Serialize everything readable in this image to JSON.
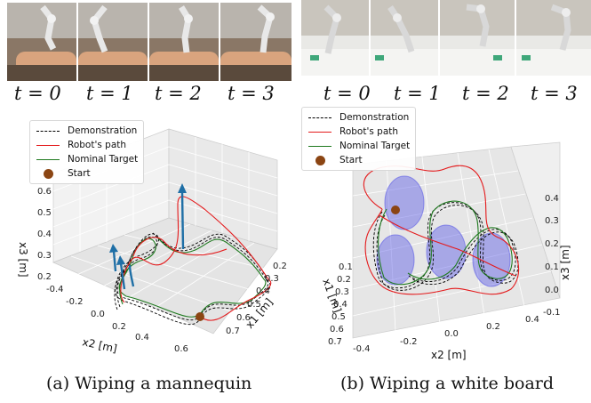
{
  "panel_a": {
    "time_labels": [
      "t = 0",
      "t = 1",
      "t = 2",
      "t = 3"
    ],
    "legend": [
      {
        "label": "Demonstration",
        "style": "dashed",
        "color": "#000000"
      },
      {
        "label": "Robot's path",
        "style": "solid",
        "color": "#e41a1c"
      },
      {
        "label": "Nominal Target",
        "style": "solid",
        "color": "#1f7a1f"
      },
      {
        "label": "Start",
        "style": "dot",
        "color": "#8b4513"
      }
    ],
    "caption": "(a) Wiping a mannequin"
  },
  "panel_b": {
    "time_labels": [
      "t = 0",
      "t = 1",
      "t = 2",
      "t = 3"
    ],
    "legend": [
      {
        "label": "Demonstration",
        "style": "dashed",
        "color": "#000000"
      },
      {
        "label": "Robot's path",
        "style": "solid",
        "color": "#e41a1c"
      },
      {
        "label": "Nominal Target",
        "style": "solid",
        "color": "#1f7a1f"
      },
      {
        "label": "Start",
        "style": "dot",
        "color": "#8b4513"
      }
    ],
    "caption": "(b) Wiping a white board"
  },
  "chart_data": [
    {
      "type": "line",
      "subtype": "3d-trajectory",
      "series": [
        {
          "name": "Demonstration"
        },
        {
          "name": "Robot's path"
        },
        {
          "name": "Nominal Target"
        },
        {
          "name": "Start"
        }
      ],
      "xlabel": "x2 [m]",
      "ylabel": "x1 [m]",
      "zlabel": "x3 [m]",
      "x_ticks": [
        "-0.4",
        "-0.2",
        "0.0",
        "0.2",
        "0.4",
        "0.6"
      ],
      "y_ticks": [
        "0.2",
        "0.3",
        "0.4",
        "0.5",
        "0.6",
        "0.7"
      ],
      "z_ticks": [
        "0.2",
        "0.3",
        "0.4",
        "0.5",
        "0.6"
      ],
      "xlim": [
        -0.5,
        0.7
      ],
      "ylim": [
        0.15,
        0.75
      ],
      "zlim": [
        0.15,
        0.65
      ],
      "grid": true,
      "legend_position": "top-left"
    },
    {
      "type": "line",
      "subtype": "3d-trajectory",
      "series": [
        {
          "name": "Demonstration"
        },
        {
          "name": "Robot's path"
        },
        {
          "name": "Nominal Target"
        },
        {
          "name": "Start"
        }
      ],
      "xlabel": "x2 [m]",
      "ylabel": "x1 [m]",
      "zlabel": "x3 [m]",
      "x_ticks": [
        "-0.4",
        "-0.2",
        "0.0",
        "0.2",
        "0.4"
      ],
      "y_ticks": [
        "0.1",
        "0.2",
        "0.3",
        "0.4",
        "0.5",
        "0.6",
        "0.7"
      ],
      "z_ticks": [
        "-0.1",
        "0.0",
        "0.1",
        "0.2",
        "0.3",
        "0.4"
      ],
      "xlim": [
        -0.5,
        0.5
      ],
      "ylim": [
        0.05,
        0.75
      ],
      "zlim": [
        -0.15,
        0.45
      ],
      "grid": true,
      "legend_position": "top-left"
    }
  ]
}
